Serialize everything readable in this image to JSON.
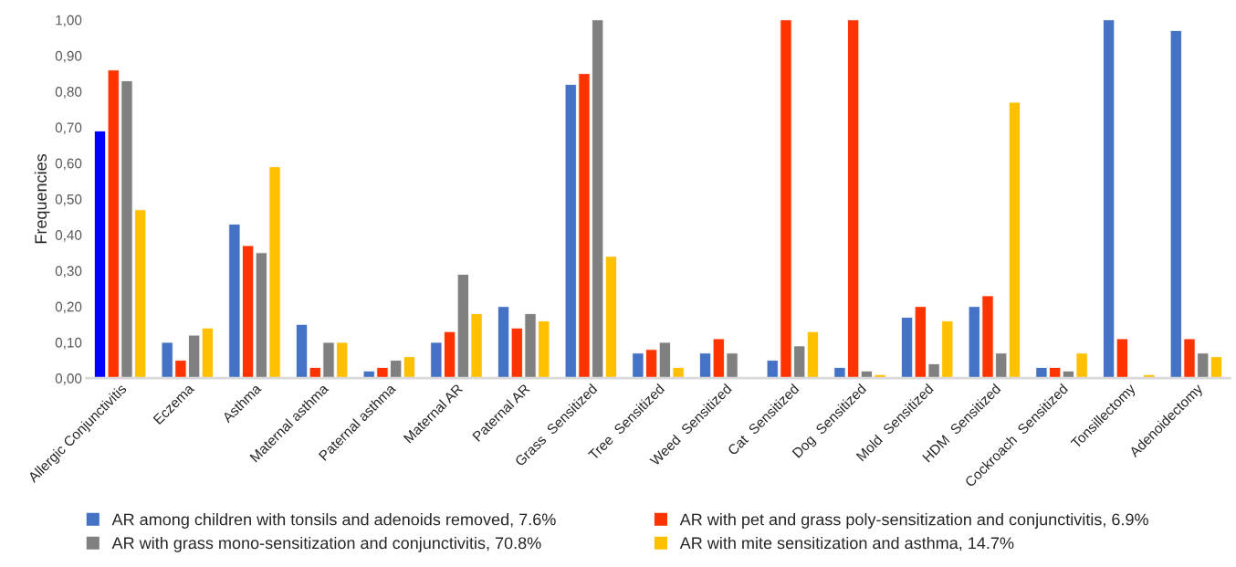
{
  "chart_data": {
    "type": "bar",
    "ylabel": "Frequencies",
    "categories": [
      "Allergic Conjunctivitis",
      "Eczema",
      "Asthma",
      "Maternal asthma",
      "Paternal asthma",
      "Maternal AR",
      "Paternal AR",
      "Grass  Sensitized",
      "Tree  Sensitized",
      "Weed  Sensitized",
      "Cat  Sensitized",
      "Dog  Sensitized",
      "Mold  Sensitized",
      "HDM  Sensitized",
      "Cockroach  Sensitized",
      "Tonsillectomy",
      "Adenoidectomy"
    ],
    "series": [
      {
        "name": "AR among children with tonsils and adenoids removed, 7.6%",
        "color": "#4472c4",
        "colors": [
          "#0000ff",
          "#4472c4",
          "#4472c4",
          "#4472c4",
          "#4472c4",
          "#4472c4",
          "#4472c4",
          "#4472c4",
          "#4472c4",
          "#4472c4",
          "#4472c4",
          "#4472c4",
          "#4472c4",
          "#4472c4",
          "#4472c4",
          "#4472c4",
          "#4472c4"
        ],
        "values": [
          0.69,
          0.1,
          0.43,
          0.15,
          0.02,
          0.1,
          0.2,
          0.82,
          0.07,
          0.07,
          0.05,
          0.03,
          0.17,
          0.2,
          0.03,
          1.0,
          0.97
        ]
      },
      {
        "name": "AR with pet and grass poly-sensitization and conjunctivitis, 6.9%",
        "color": "#ff3300",
        "values": [
          0.86,
          0.05,
          0.37,
          0.03,
          0.03,
          0.13,
          0.14,
          0.85,
          0.08,
          0.11,
          1.0,
          1.0,
          0.2,
          0.23,
          0.03,
          0.11,
          0.11
        ]
      },
      {
        "name": "AR with grass mono-sensitization and conjunctivitis, 70.8%",
        "color": "#808080",
        "values": [
          0.83,
          0.12,
          0.35,
          0.1,
          0.05,
          0.29,
          0.18,
          1.0,
          0.1,
          0.07,
          0.09,
          0.02,
          0.04,
          0.07,
          0.02,
          null,
          0.07
        ]
      },
      {
        "name": "AR with mite sensitization and asthma, 14.7%",
        "color": "#ffc000",
        "values": [
          0.47,
          0.14,
          0.59,
          0.1,
          0.06,
          0.18,
          0.16,
          0.34,
          0.03,
          null,
          0.13,
          0.01,
          0.16,
          0.77,
          0.07,
          0.01,
          0.06
        ]
      }
    ],
    "ylim": [
      0,
      1.0
    ],
    "yticks": [
      {
        "value": 0,
        "label": "0,00"
      },
      {
        "value": 0.1,
        "label": "0,10"
      },
      {
        "value": 0.2,
        "label": "0,20"
      },
      {
        "value": 0.3,
        "label": "0,30"
      },
      {
        "value": 0.4,
        "label": "0,40"
      },
      {
        "value": 0.5,
        "label": "0,50"
      },
      {
        "value": 0.6,
        "label": "0,60"
      },
      {
        "value": 0.7,
        "label": "0,70"
      },
      {
        "value": 0.8,
        "label": "0,80"
      },
      {
        "value": 0.9,
        "label": "0,90"
      },
      {
        "value": 1.0,
        "label": "1,00"
      }
    ],
    "legend": "bottom",
    "grid": false
  }
}
